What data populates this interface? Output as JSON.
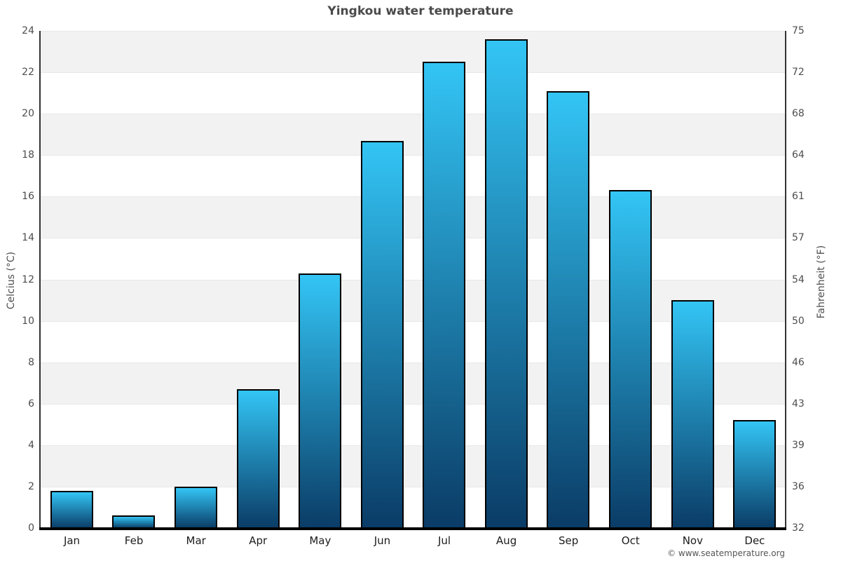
{
  "title": "Yingkou water temperature",
  "copyright": "© www.seatemperature.org",
  "chart_data": {
    "type": "bar",
    "title": "Yingkou water temperature",
    "categories": [
      "Jan",
      "Feb",
      "Mar",
      "Apr",
      "May",
      "Jun",
      "Jul",
      "Aug",
      "Sep",
      "Oct",
      "Nov",
      "Dec"
    ],
    "values": [
      1.8,
      0.6,
      2.0,
      6.7,
      12.3,
      18.7,
      22.5,
      23.6,
      21.1,
      16.3,
      11.0,
      5.2
    ],
    "ylabel_left": "Celcius (°C)",
    "ylabel_right": "Fahrenheit (°F)",
    "yticks_celsius": [
      24,
      22,
      20,
      18,
      16,
      14,
      12,
      10,
      8,
      6,
      4,
      2,
      0
    ],
    "yticks_fahrenheit": [
      75,
      72,
      68,
      64,
      61,
      57,
      54,
      50,
      46,
      43,
      39,
      36,
      32
    ],
    "ylim": [
      0,
      24
    ],
    "xlabel": "",
    "legend": "none",
    "grid": "alternating-horizontal-bands",
    "colors": {
      "bar_gradient_top": "#33c5f5",
      "bar_gradient_bottom": "#0a3c66",
      "bar_border": "#000000",
      "band_gray": "#f2f2f2",
      "band_white": "#ffffff",
      "axis_line": "#333333",
      "baseline": "#000000",
      "tick_label": "#4d4d4d",
      "month_label": "#1c1c1c",
      "title_color": "#4a4a4a",
      "copyright_color": "#555555"
    }
  }
}
